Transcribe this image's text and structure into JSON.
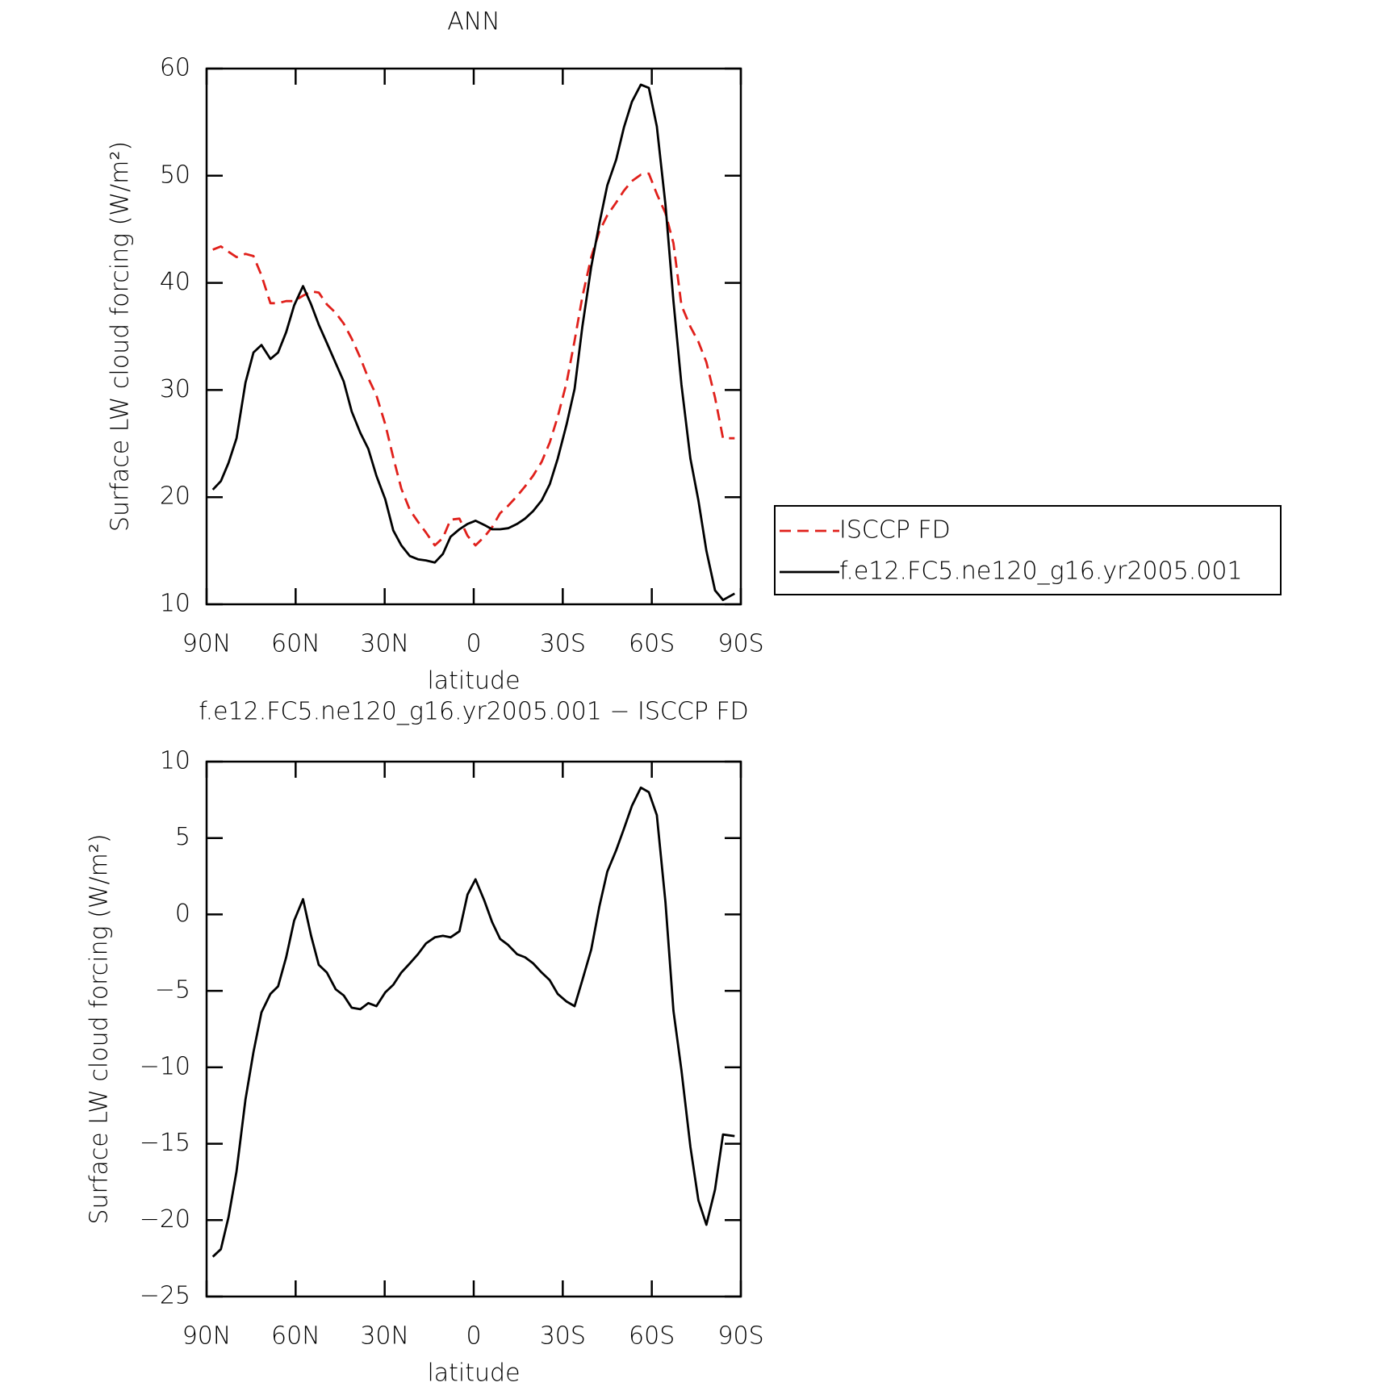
{
  "chart_data": [
    {
      "type": "line",
      "title": "ANN",
      "xlabel": "latitude",
      "ylabel": "Surface LW cloud forcing (W/m²)",
      "x": [
        87.9,
        85.2,
        82.6,
        79.9,
        76.9,
        74.2,
        71.5,
        68.5,
        65.9,
        63.2,
        60.5,
        57.5,
        54.8,
        52.2,
        49.5,
        46.5,
        43.8,
        41.1,
        38.2,
        35.5,
        32.8,
        29.8,
        27.1,
        24.4,
        21.5,
        18.8,
        16.1,
        13.1,
        10.4,
        7.8,
        4.8,
        2.1,
        -0.6,
        -3.6,
        -6.2,
        -8.9,
        -11.6,
        -14.6,
        -17.3,
        -20.0,
        -22.9,
        -25.6,
        -28.3,
        -31.3,
        -34.0,
        -36.6,
        -39.6,
        -42.3,
        -45.0,
        -48.0,
        -50.6,
        -53.3,
        -56.3,
        -59.0,
        -61.7,
        -64.6,
        -67.3,
        -70.0,
        -73.0,
        -75.7,
        -78.4,
        -81.3,
        -84.0,
        -87.9
      ],
      "xlim": [
        90,
        -90
      ],
      "xticks": [
        {
          "value": 90,
          "label": "90N"
        },
        {
          "value": 60,
          "label": "60N"
        },
        {
          "value": 30,
          "label": "30N"
        },
        0,
        {
          "value": -30,
          "label": "30S"
        },
        {
          "value": -60,
          "label": "60S"
        },
        {
          "value": -90,
          "label": "90S"
        }
      ],
      "ylim": [
        10,
        60
      ],
      "yticks": [
        10,
        20,
        30,
        40,
        50,
        60
      ],
      "legend": "right",
      "series": [
        {
          "name": "ISCCP FD",
          "color": "#e0201b",
          "style": "dashed",
          "values": [
            43.1,
            43.4,
            42.9,
            42.4,
            42.7,
            42.5,
            40.7,
            38.1,
            38.1,
            38.3,
            38.3,
            38.8,
            39.2,
            39.1,
            38.0,
            37.2,
            36.2,
            34.8,
            33.0,
            31.1,
            29.5,
            26.8,
            23.7,
            20.8,
            18.8,
            17.7,
            16.7,
            15.5,
            16.2,
            17.9,
            18.0,
            16.4,
            15.5,
            16.3,
            17.2,
            18.5,
            19.2,
            20.1,
            21.0,
            22.0,
            23.3,
            25.1,
            27.5,
            30.7,
            34.6,
            38.7,
            42.4,
            44.8,
            46.3,
            47.5,
            48.6,
            49.5,
            50.1,
            50.2,
            48.3,
            46.5,
            43.7,
            37.9,
            35.9,
            34.5,
            32.6,
            29.3,
            25.5,
            25.5
          ]
        },
        {
          "name": "f.e12.FC5.ne120_g16.yr2005.001",
          "color": "#000000",
          "style": "solid",
          "values": [
            20.7,
            21.5,
            23.2,
            25.5,
            30.7,
            33.5,
            34.2,
            32.9,
            33.5,
            35.4,
            37.9,
            39.7,
            38.0,
            36.1,
            34.4,
            32.5,
            30.8,
            28.0,
            26.0,
            24.5,
            22.0,
            19.8,
            16.9,
            15.5,
            14.5,
            14.2,
            14.1,
            13.9,
            14.7,
            16.3,
            17.0,
            17.5,
            17.8,
            17.4,
            17.0,
            17.0,
            17.1,
            17.5,
            18.0,
            18.7,
            19.7,
            21.2,
            23.6,
            26.8,
            30.1,
            35.9,
            41.5,
            45.5,
            49.1,
            51.5,
            54.5,
            56.9,
            58.5,
            58.2,
            54.6,
            47.3,
            38.3,
            30.5,
            23.6,
            19.7,
            15.0,
            11.3,
            10.4,
            11.0
          ]
        }
      ]
    },
    {
      "type": "line",
      "title": "f.e12.FC5.ne120_g16.yr2005.001 − ISCCP FD",
      "xlabel": "latitude",
      "ylabel": "Surface LW cloud forcing (W/m²)",
      "x": [
        87.9,
        85.2,
        82.6,
        79.9,
        76.9,
        74.2,
        71.5,
        68.5,
        65.9,
        63.2,
        60.5,
        57.5,
        54.8,
        52.2,
        49.5,
        46.5,
        43.8,
        41.1,
        38.2,
        35.5,
        32.8,
        29.8,
        27.1,
        24.4,
        21.5,
        18.8,
        16.1,
        13.1,
        10.4,
        7.8,
        4.8,
        2.1,
        -0.6,
        -3.6,
        -6.2,
        -8.9,
        -11.6,
        -14.6,
        -17.3,
        -20.0,
        -22.9,
        -25.6,
        -28.3,
        -31.3,
        -34.0,
        -36.6,
        -39.6,
        -42.3,
        -45.0,
        -48.0,
        -50.6,
        -53.3,
        -56.3,
        -59.0,
        -61.7,
        -64.6,
        -67.3,
        -70.0,
        -73.0,
        -75.7,
        -78.4,
        -81.3,
        -84.0,
        -87.9
      ],
      "xlim": [
        90,
        -90
      ],
      "xticks": [
        {
          "value": 90,
          "label": "90N"
        },
        {
          "value": 60,
          "label": "60N"
        },
        {
          "value": 30,
          "label": "30N"
        },
        0,
        {
          "value": -30,
          "label": "30S"
        },
        {
          "value": -60,
          "label": "60S"
        },
        {
          "value": -90,
          "label": "90S"
        }
      ],
      "ylim": [
        -25,
        10
      ],
      "yticks": [
        10,
        5,
        0,
        {
          "value": -5,
          "label": "−5"
        },
        {
          "value": -10,
          "label": "−10"
        },
        {
          "value": -15,
          "label": "−15"
        },
        {
          "value": -20,
          "label": "−20"
        },
        {
          "value": -25,
          "label": "−25"
        }
      ],
      "color": "#000000",
      "values": [
        -22.4,
        -21.9,
        -19.8,
        -16.8,
        -12.1,
        -9.0,
        -6.4,
        -5.2,
        -4.7,
        -2.8,
        -0.4,
        1.0,
        -1.4,
        -3.3,
        -3.8,
        -4.9,
        -5.3,
        -6.1,
        -6.2,
        -5.8,
        -6.0,
        -5.1,
        -4.6,
        -3.8,
        -3.2,
        -2.6,
        -1.9,
        -1.5,
        -1.4,
        -1.5,
        -1.1,
        1.3,
        2.3,
        0.9,
        -0.5,
        -1.6,
        -2.0,
        -2.6,
        -2.8,
        -3.2,
        -3.8,
        -4.3,
        -5.2,
        -5.7,
        -6.0,
        -4.3,
        -2.3,
        0.5,
        2.8,
        4.2,
        5.6,
        7.1,
        8.3,
        8.0,
        6.5,
        0.8,
        -6.3,
        -10.2,
        -15.2,
        -18.7,
        -20.3,
        -18.0,
        -14.4,
        -14.5
      ]
    }
  ]
}
